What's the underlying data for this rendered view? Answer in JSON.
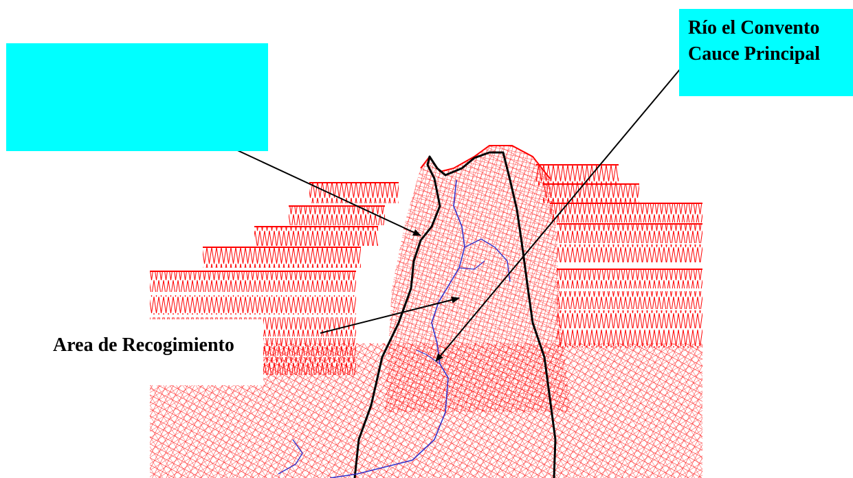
{
  "annotations": {
    "river": {
      "line1": "Río el Convento",
      "line2": "Cauce Principal"
    },
    "area": {
      "text": "Area de Recogimiento"
    },
    "blank_box": {
      "text": ""
    }
  },
  "colors": {
    "label_fill": "#00ffff",
    "mesh": "#ff0000",
    "boundary": "#000000",
    "stream": "#3333cc",
    "arrow": "#000000",
    "background": "#ffffff"
  }
}
